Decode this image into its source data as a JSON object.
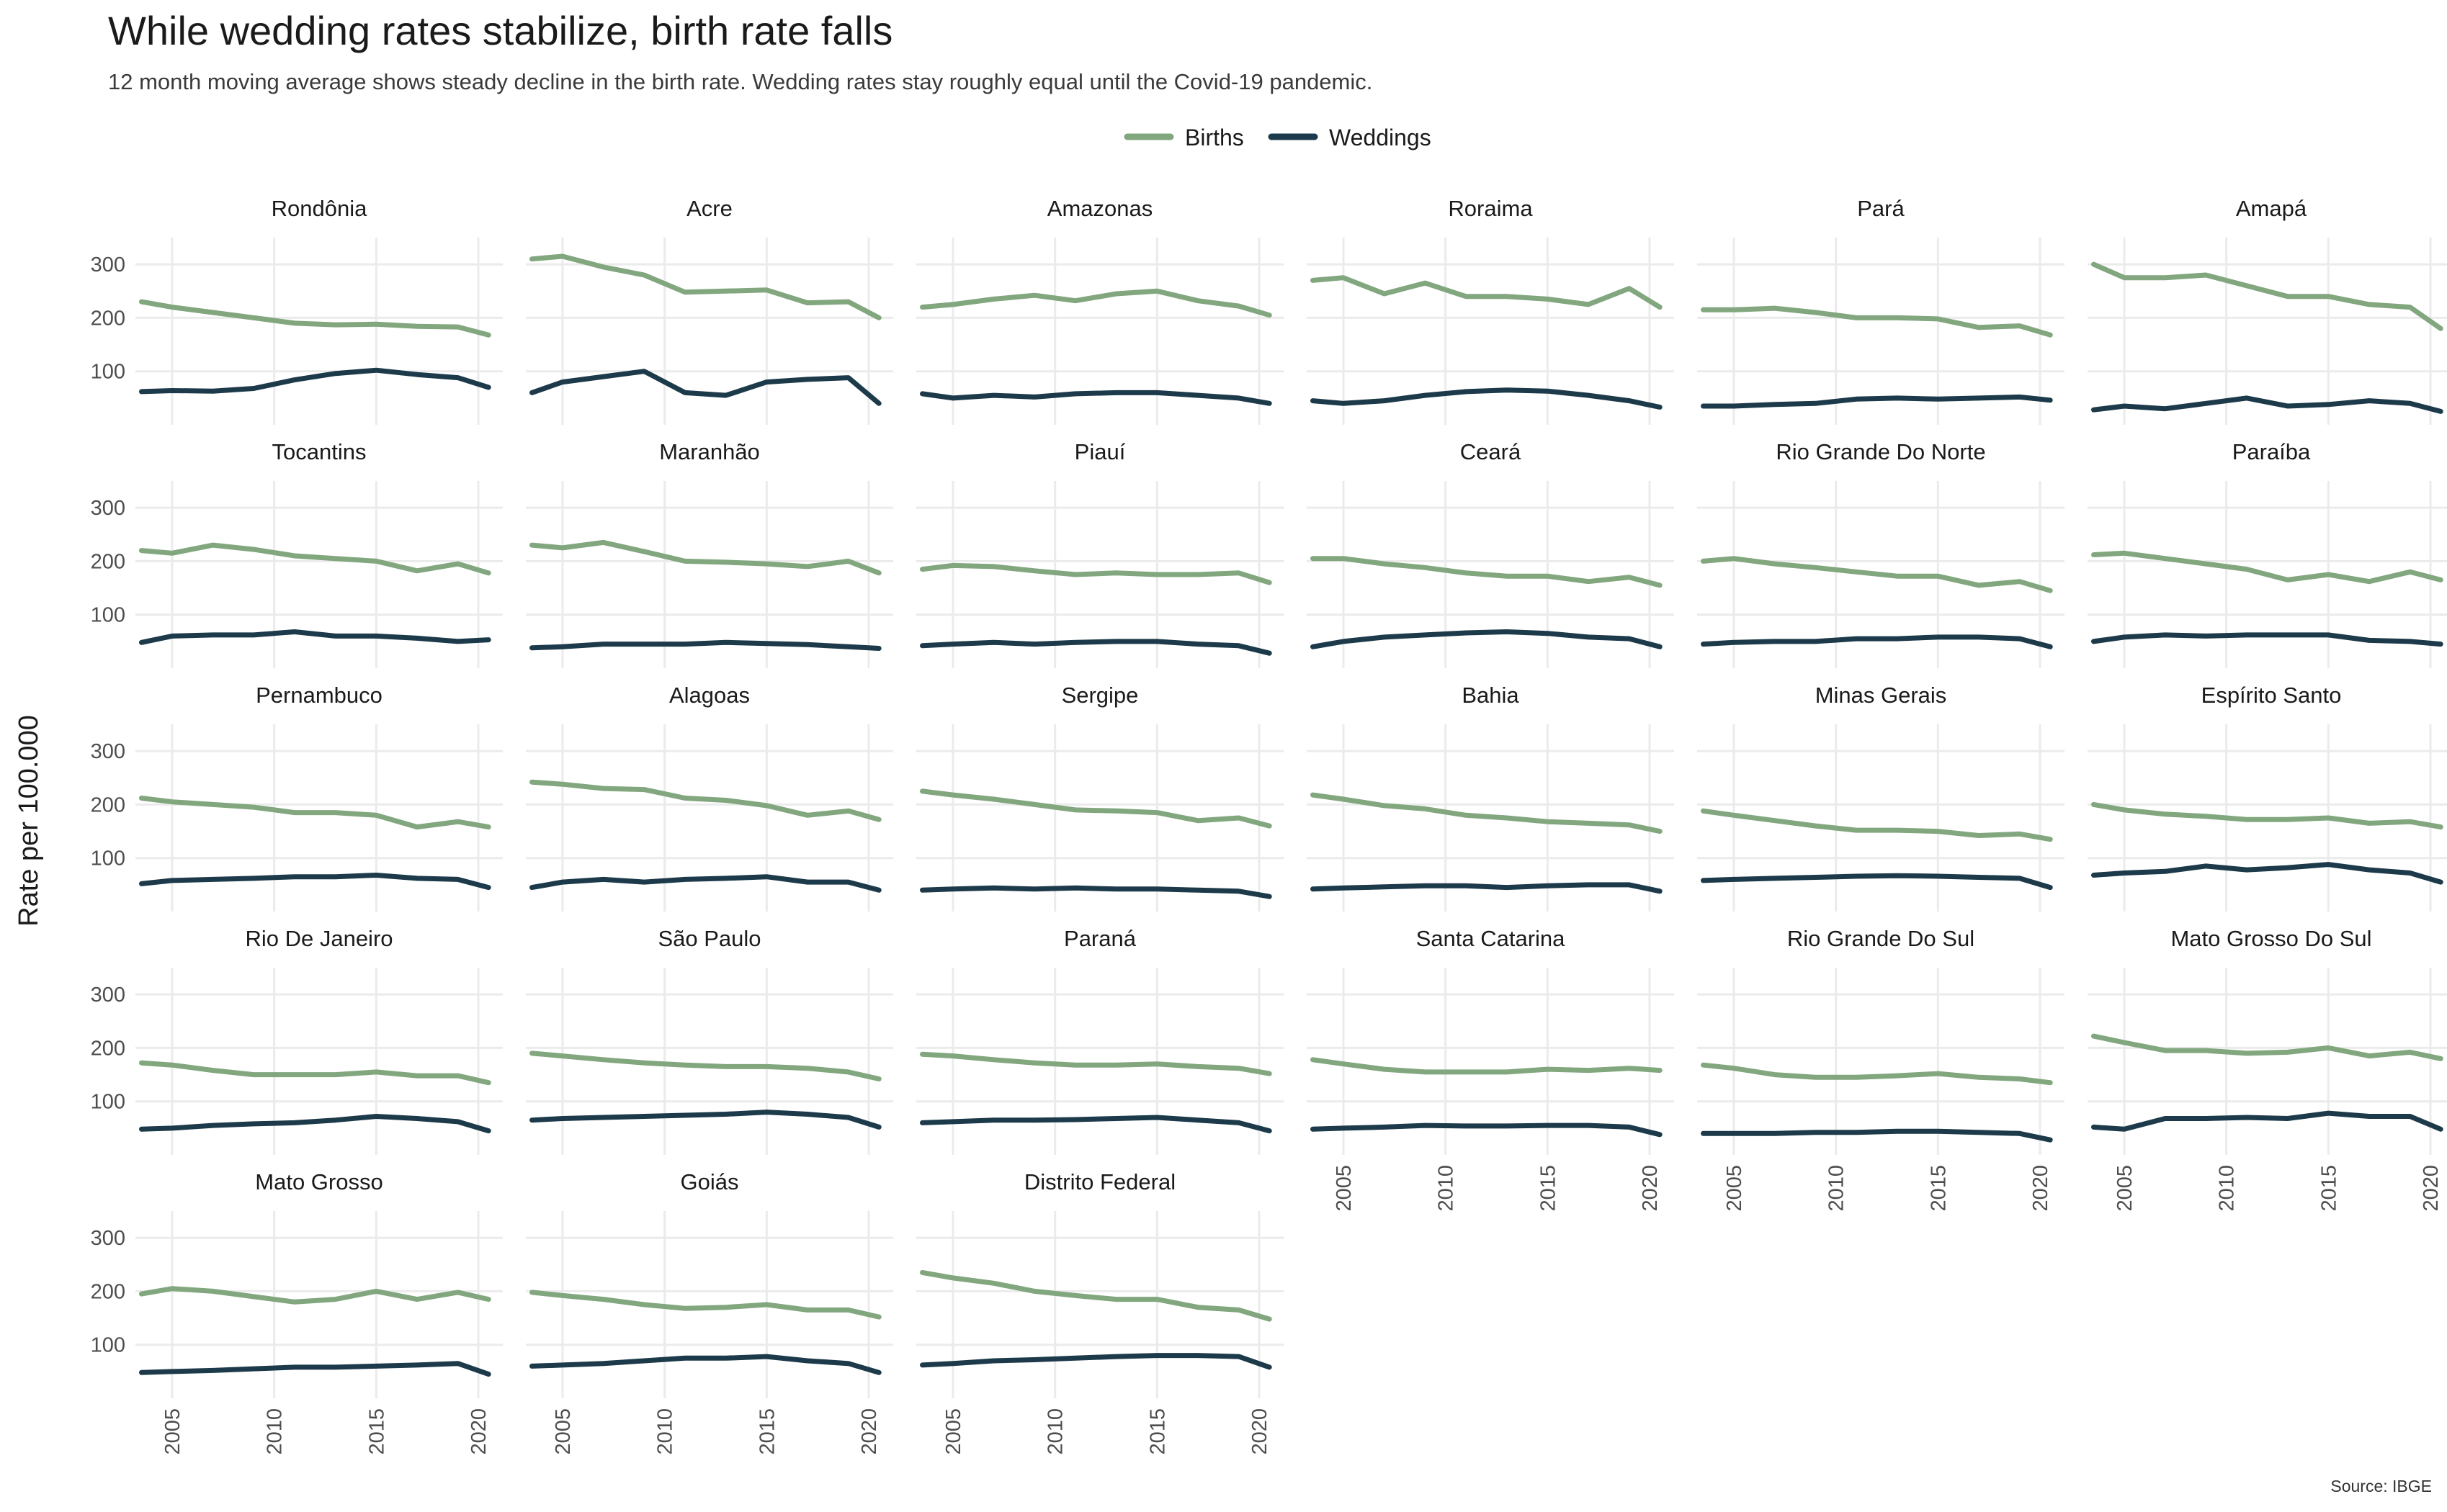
{
  "chart_data": {
    "type": "line",
    "title": "While wedding rates stabilize, birth rate falls",
    "subtitle": "12 month moving average shows steady decline in the birth rate. Wedding rates stay roughly equal until the Covid-19 pandemic.",
    "ylabel": "Rate per 100.000",
    "xlabel": "",
    "caption": "Source: IBGE",
    "legend": {
      "placement": "top",
      "entries": [
        "Births",
        "Weddings"
      ]
    },
    "colors": {
      "Births": "#82a77f",
      "Weddings": "#1d3a4b"
    },
    "grid": true,
    "xlim": [
      2003.2,
      2021.2
    ],
    "ylim": [
      0,
      350
    ],
    "x_ticks": [
      "2005",
      "2010",
      "2015",
      "2020"
    ],
    "y_ticks": [
      "100",
      "200",
      "300"
    ],
    "x": [
      2003.5,
      2005,
      2007,
      2009,
      2011,
      2013,
      2015,
      2017,
      2019,
      2020.5
    ],
    "panels": [
      {
        "name": "Rondônia",
        "Births": [
          230,
          220,
          210,
          200,
          190,
          187,
          188,
          184,
          183,
          168
        ],
        "Weddings": [
          62,
          64,
          63,
          68,
          84,
          96,
          102,
          94,
          88,
          70
        ]
      },
      {
        "name": "Acre",
        "Births": [
          310,
          315,
          295,
          280,
          248,
          250,
          252,
          228,
          230,
          200
        ],
        "Weddings": [
          60,
          80,
          90,
          100,
          60,
          55,
          80,
          85,
          88,
          40
        ]
      },
      {
        "name": "Amazonas",
        "Births": [
          220,
          225,
          235,
          242,
          232,
          245,
          250,
          232,
          222,
          205
        ],
        "Weddings": [
          58,
          50,
          55,
          52,
          58,
          60,
          60,
          55,
          50,
          40
        ]
      },
      {
        "name": "Roraima",
        "Births": [
          270,
          275,
          245,
          265,
          240,
          240,
          235,
          225,
          255,
          220
        ],
        "Weddings": [
          45,
          40,
          45,
          55,
          62,
          65,
          63,
          55,
          45,
          33
        ]
      },
      {
        "name": "Pará",
        "Births": [
          215,
          215,
          218,
          210,
          200,
          200,
          198,
          182,
          185,
          168
        ],
        "Weddings": [
          35,
          35,
          38,
          40,
          48,
          50,
          48,
          50,
          52,
          46
        ]
      },
      {
        "name": "Amapá",
        "Births": [
          300,
          275,
          275,
          280,
          260,
          240,
          240,
          225,
          220,
          180
        ],
        "Weddings": [
          28,
          35,
          30,
          40,
          50,
          35,
          38,
          45,
          40,
          25
        ]
      },
      {
        "name": "Tocantins",
        "Births": [
          220,
          215,
          230,
          222,
          210,
          205,
          200,
          182,
          195,
          178
        ],
        "Weddings": [
          48,
          60,
          62,
          62,
          68,
          60,
          60,
          56,
          50,
          53
        ]
      },
      {
        "name": "Maranhão",
        "Births": [
          230,
          225,
          235,
          218,
          200,
          198,
          195,
          190,
          200,
          178
        ],
        "Weddings": [
          38,
          40,
          45,
          45,
          45,
          48,
          46,
          44,
          40,
          37
        ]
      },
      {
        "name": "Piauí",
        "Births": [
          185,
          192,
          190,
          182,
          175,
          178,
          175,
          175,
          178,
          160
        ],
        "Weddings": [
          42,
          45,
          48,
          45,
          48,
          50,
          50,
          45,
          42,
          28
        ]
      },
      {
        "name": "Ceará",
        "Births": [
          205,
          205,
          195,
          188,
          178,
          172,
          172,
          162,
          170,
          155
        ],
        "Weddings": [
          40,
          50,
          58,
          62,
          66,
          68,
          65,
          58,
          55,
          40
        ]
      },
      {
        "name": "Rio Grande Do Norte",
        "Births": [
          200,
          205,
          195,
          188,
          180,
          172,
          172,
          155,
          162,
          145
        ],
        "Weddings": [
          45,
          48,
          50,
          50,
          55,
          55,
          58,
          58,
          55,
          40
        ]
      },
      {
        "name": "Paraíba",
        "Births": [
          212,
          215,
          205,
          195,
          185,
          165,
          175,
          162,
          180,
          165
        ],
        "Weddings": [
          50,
          58,
          62,
          60,
          62,
          62,
          62,
          52,
          50,
          45
        ]
      },
      {
        "name": "Pernambuco",
        "Births": [
          212,
          205,
          200,
          195,
          185,
          185,
          180,
          158,
          168,
          158
        ],
        "Weddings": [
          52,
          58,
          60,
          62,
          65,
          65,
          68,
          62,
          60,
          45
        ]
      },
      {
        "name": "Alagoas",
        "Births": [
          242,
          238,
          230,
          228,
          212,
          208,
          198,
          180,
          188,
          172
        ],
        "Weddings": [
          45,
          55,
          60,
          55,
          60,
          62,
          65,
          55,
          55,
          40
        ]
      },
      {
        "name": "Sergipe",
        "Births": [
          225,
          218,
          210,
          200,
          190,
          188,
          185,
          170,
          175,
          160
        ],
        "Weddings": [
          40,
          42,
          44,
          42,
          44,
          42,
          42,
          40,
          38,
          28
        ]
      },
      {
        "name": "Bahia",
        "Births": [
          218,
          210,
          198,
          192,
          180,
          175,
          168,
          165,
          162,
          150
        ],
        "Weddings": [
          42,
          44,
          46,
          48,
          48,
          45,
          48,
          50,
          50,
          38
        ]
      },
      {
        "name": "Minas Gerais",
        "Births": [
          188,
          180,
          170,
          160,
          152,
          152,
          150,
          142,
          145,
          135
        ],
        "Weddings": [
          58,
          60,
          62,
          64,
          66,
          67,
          66,
          64,
          62,
          45
        ]
      },
      {
        "name": "Espírito Santo",
        "Births": [
          200,
          190,
          182,
          178,
          172,
          172,
          175,
          165,
          168,
          158
        ],
        "Weddings": [
          68,
          72,
          75,
          85,
          78,
          82,
          88,
          78,
          72,
          55
        ]
      },
      {
        "name": "Rio De Janeiro",
        "Births": [
          172,
          168,
          158,
          150,
          150,
          150,
          155,
          148,
          148,
          135
        ],
        "Weddings": [
          48,
          50,
          55,
          58,
          60,
          65,
          72,
          68,
          62,
          45
        ]
      },
      {
        "name": "São Paulo",
        "Births": [
          190,
          185,
          178,
          172,
          168,
          165,
          165,
          162,
          155,
          142
        ],
        "Weddings": [
          65,
          68,
          70,
          72,
          74,
          76,
          80,
          76,
          70,
          52
        ]
      },
      {
        "name": "Paraná",
        "Births": [
          188,
          185,
          178,
          172,
          168,
          168,
          170,
          165,
          162,
          152
        ],
        "Weddings": [
          60,
          62,
          65,
          65,
          66,
          68,
          70,
          65,
          60,
          45
        ]
      },
      {
        "name": "Santa Catarina",
        "Births": [
          178,
          170,
          160,
          155,
          155,
          155,
          160,
          158,
          162,
          158
        ],
        "Weddings": [
          48,
          50,
          52,
          55,
          54,
          54,
          55,
          55,
          52,
          38
        ]
      },
      {
        "name": "Rio Grande Do Sul",
        "Births": [
          168,
          162,
          150,
          145,
          145,
          148,
          152,
          145,
          142,
          135
        ],
        "Weddings": [
          40,
          40,
          40,
          42,
          42,
          44,
          44,
          42,
          40,
          28
        ]
      },
      {
        "name": "Mato Grosso Do Sul",
        "Births": [
          222,
          210,
          195,
          195,
          190,
          192,
          200,
          185,
          192,
          180
        ],
        "Weddings": [
          52,
          48,
          68,
          68,
          70,
          68,
          78,
          72,
          72,
          48
        ]
      },
      {
        "name": "Mato Grosso",
        "Births": [
          195,
          205,
          200,
          190,
          180,
          185,
          200,
          185,
          198,
          185
        ],
        "Weddings": [
          48,
          50,
          52,
          55,
          58,
          58,
          60,
          62,
          65,
          45
        ]
      },
      {
        "name": "Goiás",
        "Births": [
          198,
          192,
          185,
          175,
          168,
          170,
          175,
          165,
          165,
          152
        ],
        "Weddings": [
          60,
          62,
          65,
          70,
          75,
          75,
          78,
          70,
          65,
          48
        ]
      },
      {
        "name": "Distrito Federal",
        "Births": [
          235,
          225,
          215,
          200,
          192,
          185,
          185,
          170,
          165,
          148
        ],
        "Weddings": [
          62,
          65,
          70,
          72,
          75,
          78,
          80,
          80,
          78,
          58
        ]
      }
    ]
  }
}
